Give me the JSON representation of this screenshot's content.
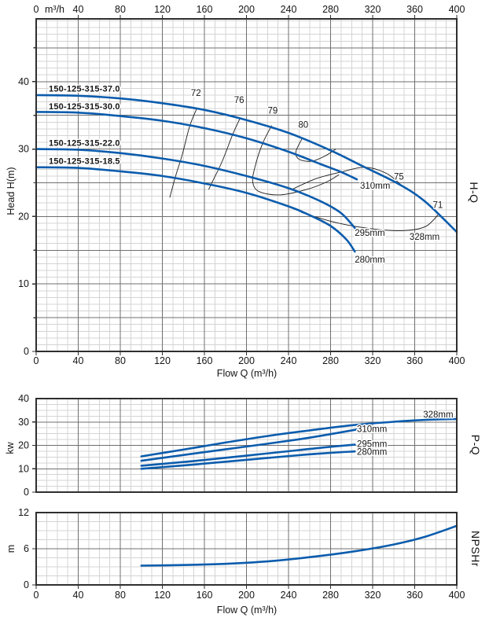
{
  "colors": {
    "curve_blue": "#0b5cad",
    "contour_black": "#1b1b1b",
    "grid_major": "#6f6f6f",
    "grid_minor": "#d4d4d4",
    "border": "#2f2f2f",
    "text": "#151515",
    "background": "#ffffff"
  },
  "axis_titles": {
    "hq_y": "Head H(m)",
    "pq_y": "kw",
    "npshr_y": "m",
    "hq_x": "Flow Q (m³/h)",
    "npshr_x": "Flow Q (m³/h)"
  },
  "side_labels": {
    "hq": "H-Q",
    "pq": "P-Q",
    "npshr": "NPSHr"
  },
  "chart_data": [
    {
      "id": "hq",
      "type": "line",
      "title": "H-Q",
      "xlabel": "Flow Q (m³/h)",
      "ylabel": "Head H(m)",
      "xlim": [
        0,
        400
      ],
      "ylim": [
        0,
        49.3
      ],
      "x_ticks": [
        0,
        40,
        80,
        120,
        160,
        200,
        240,
        280,
        320,
        360,
        400
      ],
      "y_ticks": [
        0,
        10,
        20,
        30,
        40
      ],
      "x_minor_step": 10,
      "y_minor_step": 1,
      "y_submajor_step": 5,
      "top_axis": {
        "zero": "0",
        "unit": "m³/h",
        "ticks": [
          40,
          80,
          120,
          160,
          200,
          240,
          280,
          320,
          360,
          400
        ]
      },
      "series": [
        {
          "name": "328mm",
          "model": "150-125-315-37.0",
          "points": [
            [
              0,
              38.0
            ],
            [
              40,
              37.9
            ],
            [
              80,
              37.5
            ],
            [
              120,
              36.8
            ],
            [
              160,
              35.8
            ],
            [
              200,
              34.3
            ],
            [
              240,
              32.4
            ],
            [
              280,
              29.8
            ],
            [
              310,
              27.5
            ],
            [
              345,
              24.8
            ],
            [
              370,
              22.2
            ],
            [
              400,
              17.7
            ]
          ]
        },
        {
          "name": "310mm",
          "model": "150-125-315-30.0",
          "points": [
            [
              0,
              35.5
            ],
            [
              40,
              35.4
            ],
            [
              80,
              34.9
            ],
            [
              120,
              34.2
            ],
            [
              160,
              33.1
            ],
            [
              200,
              31.6
            ],
            [
              240,
              29.6
            ],
            [
              270,
              27.8
            ],
            [
              290,
              26.6
            ],
            [
              305,
              25.5
            ]
          ]
        },
        {
          "name": "295mm",
          "model": "150-125-315-22.0",
          "points": [
            [
              0,
              30.0
            ],
            [
              40,
              29.9
            ],
            [
              80,
              29.4
            ],
            [
              120,
              28.6
            ],
            [
              160,
              27.5
            ],
            [
              200,
              26.0
            ],
            [
              240,
              24.2
            ],
            [
              270,
              22.3
            ],
            [
              290,
              20.5
            ],
            [
              303,
              18.3
            ]
          ]
        },
        {
          "name": "280mm",
          "model": "150-125-315-18.5",
          "points": [
            [
              0,
              27.3
            ],
            [
              40,
              27.2
            ],
            [
              80,
              26.7
            ],
            [
              120,
              26.0
            ],
            [
              160,
              24.9
            ],
            [
              200,
              23.5
            ],
            [
              240,
              21.5
            ],
            [
              260,
              20.2
            ],
            [
              280,
              18.6
            ],
            [
              295,
              16.6
            ],
            [
              303,
              14.8
            ]
          ]
        }
      ],
      "model_labels": [
        {
          "text": "150-125-315-37.0",
          "q": 12,
          "h": 38.5
        },
        {
          "text": "150-125-315-30.0",
          "q": 12,
          "h": 35.9
        },
        {
          "text": "150-125-315-22.0",
          "q": 12,
          "h": 30.5
        },
        {
          "text": "150-125-315-18.5",
          "q": 12,
          "h": 27.8
        }
      ],
      "diameter_labels": [
        {
          "text": "310mm",
          "q": 308,
          "h": 24.5,
          "anchor": "start"
        },
        {
          "text": "295mm",
          "q": 303,
          "h": 17.5,
          "anchor": "start"
        },
        {
          "text": "280mm",
          "q": 303,
          "h": 13.5,
          "anchor": "start"
        },
        {
          "text": "328mm",
          "q": 355,
          "h": 16.9,
          "anchor": "start"
        }
      ],
      "efficiency_contours": [
        {
          "label": "72",
          "label_q": 152,
          "label_h": 38.2,
          "points": [
            [
              153,
              36.1
            ],
            [
              146,
              33.4
            ],
            [
              139,
              29.2
            ],
            [
              133,
              26.2
            ],
            [
              127,
              22.8
            ]
          ]
        },
        {
          "label": "76",
          "label_q": 193,
          "label_h": 37.2,
          "points": [
            [
              194,
              34.6
            ],
            [
              187,
              32.2
            ],
            [
              177,
              28.2
            ],
            [
              169,
              25.6
            ],
            [
              164,
              24.0
            ]
          ]
        },
        {
          "label": "79",
          "label_q": 225,
          "label_h": 35.6,
          "points": [
            [
              224,
              33.5
            ],
            [
              215,
              30.7
            ],
            [
              208,
              27.3
            ],
            [
              206,
              25.1
            ],
            [
              212,
              23.7
            ],
            [
              232,
              23.2
            ],
            [
              257,
              24.0
            ],
            [
              276,
              25.1
            ],
            [
              288,
              26.2
            ]
          ]
        },
        {
          "label": "80",
          "label_q": 254,
          "label_h": 33.5,
          "points": [
            [
              253,
              31.6
            ],
            [
              247,
              29.6
            ],
            [
              250,
              28.5
            ],
            [
              262,
              28.2
            ],
            [
              275,
              29.0
            ],
            [
              285,
              30.0
            ]
          ]
        },
        {
          "label": "75",
          "label_q": 345,
          "label_h": 25.8,
          "points": [
            [
              243,
              24.0
            ],
            [
              266,
              25.6
            ],
            [
              290,
              26.6
            ],
            [
              313,
              27.3
            ],
            [
              333,
              26.4
            ],
            [
              347,
              24.7
            ]
          ]
        },
        {
          "label": "71",
          "label_q": 382,
          "label_h": 21.6,
          "points": [
            [
              252,
              20.6
            ],
            [
              285,
              19.1
            ],
            [
              318,
              18.2
            ],
            [
              348,
              17.9
            ],
            [
              370,
              18.5
            ],
            [
              383,
              20.4
            ]
          ]
        }
      ]
    },
    {
      "id": "pq",
      "type": "line",
      "title": "P-Q",
      "ylabel": "kw",
      "xlim": [
        0,
        400
      ],
      "ylim": [
        0,
        40
      ],
      "y_ticks": [
        0,
        10,
        20,
        30,
        40
      ],
      "x_minor_step": 10,
      "y_minor_step": 2.5,
      "y_submajor_step": 10,
      "series": [
        {
          "name": "328mm",
          "points": [
            [
              100,
              15.3
            ],
            [
              140,
              18.2
            ],
            [
              180,
              21.2
            ],
            [
              220,
              24.0
            ],
            [
              260,
              26.4
            ],
            [
              300,
              28.6
            ],
            [
              340,
              30.1
            ],
            [
              370,
              30.9
            ],
            [
              400,
              31.3
            ]
          ]
        },
        {
          "name": "310mm",
          "points": [
            [
              100,
              13.4
            ],
            [
              150,
              16.5
            ],
            [
              200,
              19.5
            ],
            [
              250,
              22.6
            ],
            [
              280,
              24.8
            ],
            [
              305,
              26.8
            ]
          ]
        },
        {
          "name": "295mm",
          "points": [
            [
              100,
              11.3
            ],
            [
              150,
              13.3
            ],
            [
              200,
              15.6
            ],
            [
              250,
              18.0
            ],
            [
              280,
              19.4
            ],
            [
              303,
              20.3
            ]
          ]
        },
        {
          "name": "280mm",
          "points": [
            [
              100,
              10.0
            ],
            [
              150,
              11.8
            ],
            [
              200,
              13.8
            ],
            [
              250,
              15.8
            ],
            [
              280,
              16.8
            ],
            [
              303,
              17.4
            ]
          ]
        }
      ],
      "diameter_labels": [
        {
          "text": "328mm",
          "q": 368,
          "h": 33.0,
          "anchor": "start"
        },
        {
          "text": "310mm",
          "q": 305,
          "h": 26.7,
          "anchor": "start"
        },
        {
          "text": "295mm",
          "q": 305,
          "h": 20.3,
          "anchor": "start"
        },
        {
          "text": "280mm",
          "q": 305,
          "h": 16.9,
          "anchor": "start"
        }
      ]
    },
    {
      "id": "npshr",
      "type": "line",
      "title": "NPSHr",
      "ylabel": "m",
      "xlabel": "Flow Q (m³/h)",
      "xlim": [
        0,
        400
      ],
      "ylim": [
        0,
        12
      ],
      "x_ticks": [
        0,
        40,
        80,
        120,
        160,
        200,
        240,
        280,
        320,
        360,
        400
      ],
      "y_ticks": [
        0,
        6,
        12
      ],
      "x_minor_step": 10,
      "y_minor_step": 1.5,
      "y_submajor_step": 6,
      "series": [
        {
          "name": "NPSHr",
          "points": [
            [
              100,
              3.2
            ],
            [
              140,
              3.3
            ],
            [
              180,
              3.5
            ],
            [
              220,
              3.9
            ],
            [
              260,
              4.6
            ],
            [
              300,
              5.5
            ],
            [
              340,
              6.7
            ],
            [
              370,
              8.0
            ],
            [
              400,
              9.8
            ]
          ]
        }
      ]
    }
  ]
}
